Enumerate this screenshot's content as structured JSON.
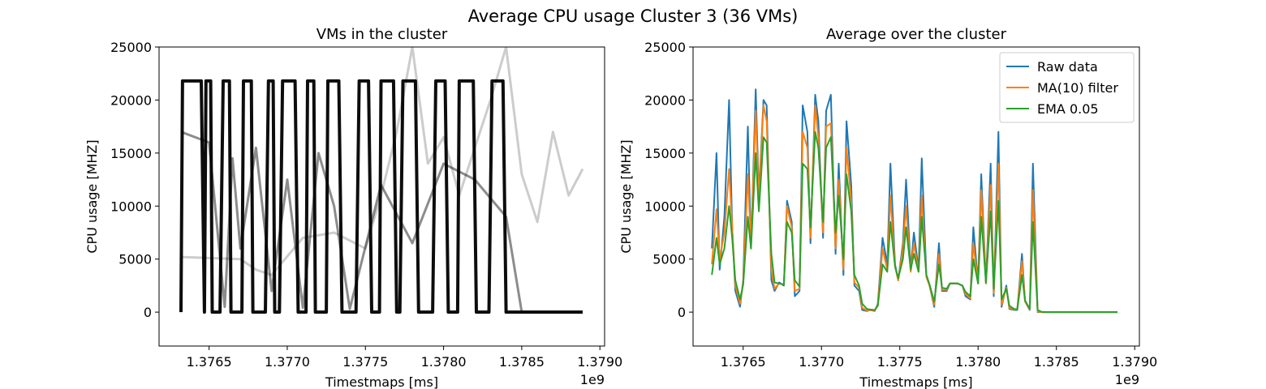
{
  "suptitle": "Average CPU usage Cluster 3 (36 VMs)",
  "chart_data": [
    {
      "type": "line",
      "title": "VMs in the cluster",
      "xlabel": "Timestmaps [ms]",
      "ylabel": "CPU usage [MHZ]",
      "x_offset_label": "1e9",
      "xlim": [
        1.37618,
        1.37903
      ],
      "ylim": [
        -3200,
        25000
      ],
      "xticks": [
        1.3765,
        1.377,
        1.3775,
        1.378,
        1.3785,
        1.379
      ],
      "xtick_labels": [
        "1.3765",
        "1.3770",
        "1.3775",
        "1.3780",
        "1.3785",
        "1.3790"
      ],
      "yticks": [
        0,
        5000,
        10000,
        15000,
        20000,
        25000
      ],
      "ytick_labels": [
        "0",
        "5000",
        "10000",
        "15000",
        "20000",
        "25000"
      ],
      "line_color": "#000000",
      "series": [
        {
          "shade": "dark",
          "x": [
            1.37632,
            1.37633,
            1.37645,
            1.37647,
            1.37648,
            1.37651,
            1.37652,
            1.37657,
            1.37659,
            1.37663,
            1.37664,
            1.37671,
            1.37672,
            1.37677,
            1.37678,
            1.37686,
            1.37688,
            1.37691,
            1.37692,
            1.37695,
            1.37697,
            1.37705,
            1.37707,
            1.37712,
            1.37713,
            1.37717,
            1.37718,
            1.37725,
            1.37726,
            1.37733,
            1.37735,
            1.37744,
            1.37746,
            1.37752,
            1.37754,
            1.37759,
            1.3776,
            1.37768,
            1.3777,
            1.37772,
            1.37774,
            1.37782,
            1.37784,
            1.37793,
            1.37795,
            1.37801,
            1.37803,
            1.37809,
            1.3781,
            1.37819,
            1.37821,
            1.37829,
            1.37831,
            1.37838,
            1.3784,
            1.37845,
            1.37889
          ],
          "y": [
            0,
            21800,
            21800,
            0,
            21800,
            21800,
            0,
            0,
            21800,
            21800,
            0,
            0,
            21800,
            21800,
            0,
            0,
            21800,
            21800,
            0,
            0,
            21800,
            21800,
            0,
            0,
            21800,
            21800,
            0,
            0,
            21800,
            21800,
            0,
            0,
            21800,
            21800,
            0,
            0,
            21800,
            21800,
            0,
            0,
            21800,
            21800,
            0,
            0,
            21800,
            21800,
            0,
            0,
            21800,
            21800,
            0,
            0,
            21800,
            21800,
            0,
            0,
            0
          ]
        },
        {
          "shade": "mid",
          "x": [
            1.37632,
            1.3765,
            1.3766,
            1.37665,
            1.3767,
            1.3768,
            1.3769,
            1.377,
            1.3771,
            1.3772,
            1.3773,
            1.3774,
            1.3776,
            1.3778,
            1.378,
            1.3782,
            1.3784,
            1.3785,
            1.37889
          ],
          "y": [
            17000,
            16000,
            500,
            14500,
            6000,
            15500,
            2000,
            12500,
            400,
            15000,
            10000,
            300,
            12000,
            6500,
            14000,
            12500,
            9000,
            0,
            0
          ]
        },
        {
          "shade": "light",
          "x": [
            1.37632,
            1.3767,
            1.3768,
            1.3769,
            1.3771,
            1.3773,
            1.3775,
            1.3776,
            1.3777,
            1.3778,
            1.3779,
            1.378,
            1.3781,
            1.3782,
            1.3783,
            1.3784,
            1.3785,
            1.3786,
            1.3787,
            1.3788,
            1.37889
          ],
          "y": [
            5200,
            5000,
            4000,
            3500,
            7000,
            7500,
            6000,
            11000,
            17000,
            25000,
            14000,
            16500,
            11000,
            15500,
            20000,
            25000,
            13000,
            8500,
            17000,
            11000,
            13500
          ]
        }
      ]
    },
    {
      "type": "line",
      "title": "Average over the cluster",
      "xlabel": "Timestmaps [ms]",
      "ylabel": "CPU usage [MHZ]",
      "x_offset_label": "1e9",
      "xlim": [
        1.37618,
        1.37903
      ],
      "ylim": [
        -3200,
        25000
      ],
      "xticks": [
        1.3765,
        1.377,
        1.3775,
        1.378,
        1.3785,
        1.379
      ],
      "xtick_labels": [
        "1.3765",
        "1.3770",
        "1.3775",
        "1.3780",
        "1.3785",
        "1.3790"
      ],
      "yticks": [
        0,
        5000,
        10000,
        15000,
        20000,
        25000
      ],
      "ytick_labels": [
        "0",
        "5000",
        "10000",
        "15000",
        "20000",
        "25000"
      ],
      "legend_position": "top-right",
      "series": [
        {
          "name": "Raw data",
          "color": "#1f77b4",
          "x": [
            1.3763,
            1.37633,
            1.37635,
            1.37638,
            1.37641,
            1.37643,
            1.37645,
            1.37648,
            1.3765,
            1.37653,
            1.37655,
            1.37658,
            1.3766,
            1.37663,
            1.37665,
            1.37668,
            1.3767,
            1.37673,
            1.37676,
            1.37678,
            1.37681,
            1.37683,
            1.37686,
            1.37688,
            1.37691,
            1.37693,
            1.37696,
            1.37698,
            1.37701,
            1.37703,
            1.37706,
            1.37709,
            1.37711,
            1.37714,
            1.37716,
            1.37719,
            1.37721,
            1.37724,
            1.37726,
            1.37729,
            1.37731,
            1.37734,
            1.37736,
            1.37739,
            1.37742,
            1.37744,
            1.37747,
            1.37749,
            1.37752,
            1.37754,
            1.37757,
            1.37759,
            1.37762,
            1.37764,
            1.37767,
            1.37769,
            1.37772,
            1.37775,
            1.37777,
            1.3778,
            1.37782,
            1.37785,
            1.37787,
            1.3779,
            1.37792,
            1.37795,
            1.37797,
            1.378,
            1.37802,
            1.37805,
            1.37808,
            1.3781,
            1.37813,
            1.37815,
            1.37818,
            1.3782,
            1.37823,
            1.37825,
            1.37828,
            1.3783,
            1.37833,
            1.37835,
            1.37838,
            1.37841,
            1.37843,
            1.37846,
            1.37848,
            1.37851,
            1.37853,
            1.37856,
            1.37858,
            1.37861,
            1.37863,
            1.37866,
            1.37868,
            1.37871,
            1.37874,
            1.37876,
            1.37879,
            1.37881,
            1.37884,
            1.37886,
            1.37889
          ],
          "y": [
            6000,
            15000,
            4000,
            9000,
            20000,
            8000,
            2000,
            500,
            3000,
            17500,
            6000,
            21000,
            11000,
            20000,
            19500,
            3000,
            2000,
            2800,
            2500,
            10500,
            8500,
            1500,
            2000,
            19500,
            17000,
            6500,
            20500,
            18000,
            7000,
            19000,
            20500,
            5500,
            14000,
            3500,
            18000,
            12000,
            2500,
            2000,
            200,
            100,
            200,
            100,
            800,
            7000,
            4500,
            14000,
            4500,
            3000,
            6500,
            12500,
            4000,
            7500,
            4000,
            14500,
            3500,
            2500,
            500,
            6500,
            2000,
            2000,
            2700,
            2700,
            2700,
            2500,
            1500,
            1200,
            8000,
            2700,
            13000,
            2700,
            14000,
            1500,
            17000,
            500,
            2500,
            300,
            200,
            200,
            5500,
            1000,
            200,
            14000,
            0,
            0,
            0,
            0,
            0,
            0,
            0,
            0,
            0,
            0,
            0,
            0,
            0,
            0,
            0,
            0,
            0,
            0,
            0,
            0,
            0
          ]
        },
        {
          "name": "MA(10) filter",
          "color": "#ff7f0e",
          "x": [
            1.3763,
            1.37633,
            1.37635,
            1.37638,
            1.37641,
            1.37643,
            1.37645,
            1.37648,
            1.3765,
            1.37653,
            1.37655,
            1.37658,
            1.3766,
            1.37663,
            1.37665,
            1.37668,
            1.3767,
            1.37673,
            1.37676,
            1.37678,
            1.37681,
            1.37683,
            1.37686,
            1.37688,
            1.37691,
            1.37693,
            1.37696,
            1.37698,
            1.37701,
            1.37703,
            1.37706,
            1.37709,
            1.37711,
            1.37714,
            1.37716,
            1.37719,
            1.37721,
            1.37724,
            1.37726,
            1.37729,
            1.37731,
            1.37734,
            1.37736,
            1.37739,
            1.37742,
            1.37744,
            1.37747,
            1.37749,
            1.37752,
            1.37754,
            1.37757,
            1.37759,
            1.37762,
            1.37764,
            1.37767,
            1.37769,
            1.37772,
            1.37775,
            1.37777,
            1.3778,
            1.37782,
            1.37785,
            1.37787,
            1.3779,
            1.37792,
            1.37795,
            1.37797,
            1.378,
            1.37802,
            1.37805,
            1.37808,
            1.3781,
            1.37813,
            1.37815,
            1.37818,
            1.3782,
            1.37823,
            1.37825,
            1.37828,
            1.3783,
            1.37833,
            1.37835,
            1.37838,
            1.37841,
            1.37843,
            1.37846,
            1.37848,
            1.37851,
            1.37853,
            1.37856,
            1.37858,
            1.37861,
            1.37863,
            1.37866,
            1.37868,
            1.37871,
            1.37874,
            1.37876,
            1.37879,
            1.37881,
            1.37884,
            1.37886,
            1.37889
          ],
          "y": [
            4500,
            9700,
            5000,
            7500,
            13500,
            8000,
            2500,
            800,
            2800,
            13000,
            6500,
            19000,
            10500,
            19500,
            18000,
            4000,
            2200,
            2700,
            2600,
            10000,
            8000,
            2000,
            2200,
            17000,
            15500,
            7000,
            19500,
            16500,
            7500,
            17500,
            17800,
            6000,
            12500,
            4000,
            15500,
            10500,
            2800,
            2300,
            400,
            150,
            200,
            150,
            700,
            6000,
            4000,
            11000,
            4300,
            3000,
            6000,
            10000,
            3800,
            6500,
            3800,
            11000,
            3300,
            2500,
            700,
            5500,
            2100,
            2100,
            2700,
            2700,
            2700,
            2500,
            1700,
            1300,
            6500,
            2700,
            11500,
            2700,
            12000,
            1800,
            14000,
            700,
            2300,
            400,
            250,
            250,
            4800,
            1000,
            250,
            11500,
            50,
            0,
            0,
            0,
            0,
            0,
            0,
            0,
            0,
            0,
            0,
            0,
            0,
            0,
            0,
            0,
            0,
            0,
            0,
            0,
            0
          ]
        },
        {
          "name": "EMA 0.05",
          "color": "#2ca02c",
          "x": [
            1.3763,
            1.37633,
            1.37635,
            1.37638,
            1.37641,
            1.37643,
            1.37645,
            1.37648,
            1.3765,
            1.37653,
            1.37655,
            1.37658,
            1.3766,
            1.37663,
            1.37665,
            1.37668,
            1.3767,
            1.37673,
            1.37676,
            1.37678,
            1.37681,
            1.37683,
            1.37686,
            1.37688,
            1.37691,
            1.37693,
            1.37696,
            1.37698,
            1.37701,
            1.37703,
            1.37706,
            1.37709,
            1.37711,
            1.37714,
            1.37716,
            1.37719,
            1.37721,
            1.37724,
            1.37726,
            1.37729,
            1.37731,
            1.37734,
            1.37736,
            1.37739,
            1.37742,
            1.37744,
            1.37747,
            1.37749,
            1.37752,
            1.37754,
            1.37757,
            1.37759,
            1.37762,
            1.37764,
            1.37767,
            1.37769,
            1.37772,
            1.37775,
            1.37777,
            1.3778,
            1.37782,
            1.37785,
            1.37787,
            1.3779,
            1.37792,
            1.37795,
            1.37797,
            1.378,
            1.37802,
            1.37805,
            1.37808,
            1.3781,
            1.37813,
            1.37815,
            1.37818,
            1.3782,
            1.37823,
            1.37825,
            1.37828,
            1.3783,
            1.37833,
            1.37835,
            1.37838,
            1.37841,
            1.37843,
            1.37846,
            1.37848,
            1.37851,
            1.37853,
            1.37856,
            1.37858,
            1.37861,
            1.37863,
            1.37866,
            1.37868,
            1.37871,
            1.37874,
            1.37876,
            1.37879,
            1.37881,
            1.37884,
            1.37886,
            1.37889
          ],
          "y": [
            3500,
            7000,
            4500,
            6000,
            10000,
            7000,
            3000,
            1200,
            2600,
            9000,
            6000,
            15000,
            9500,
            16500,
            16000,
            5500,
            2800,
            2700,
            2600,
            8500,
            7500,
            3000,
            2400,
            14000,
            13500,
            8000,
            17000,
            15500,
            8500,
            15500,
            16500,
            7500,
            11000,
            5000,
            13000,
            9500,
            3500,
            2500,
            800,
            300,
            250,
            200,
            600,
            4500,
            3800,
            8500,
            4300,
            3200,
            5000,
            8000,
            4000,
            5500,
            3800,
            9000,
            3500,
            2600,
            1000,
            4500,
            2300,
            2200,
            2700,
            2700,
            2700,
            2500,
            1900,
            1500,
            5000,
            2700,
            9000,
            2800,
            9500,
            2200,
            10500,
            1200,
            2200,
            600,
            300,
            250,
            3500,
            1100,
            300,
            8500,
            200,
            0,
            0,
            0,
            0,
            0,
            0,
            0,
            0,
            0,
            0,
            0,
            0,
            0,
            0,
            0,
            0,
            0,
            0,
            0,
            0
          ]
        }
      ]
    }
  ]
}
